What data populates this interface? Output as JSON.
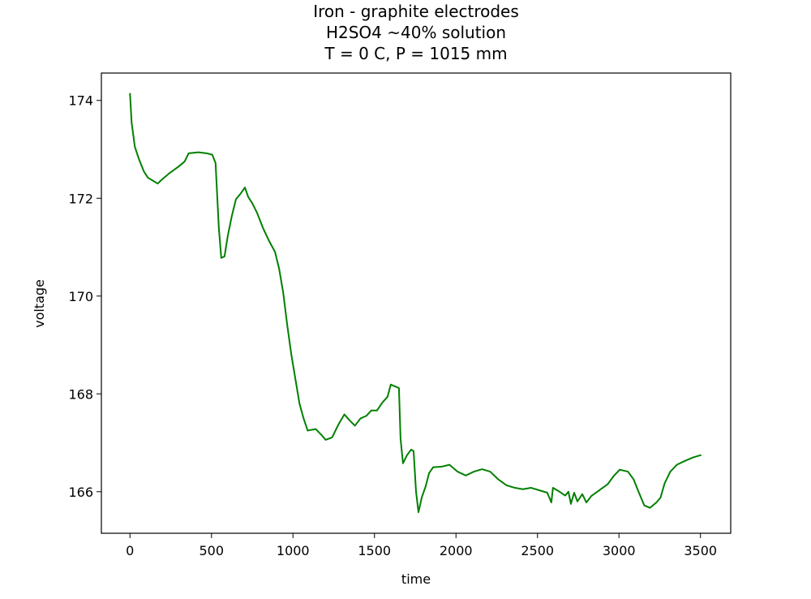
{
  "chart_data": {
    "type": "line",
    "title": [
      "Iron - graphite electrodes",
      "H2SO4 ~40% solution",
      "T = 0 C, P = 1015 mm"
    ],
    "x_label": "time",
    "y_label": "voltage",
    "x": [
      0,
      10,
      30,
      55,
      85,
      110,
      145,
      170,
      195,
      245,
      295,
      335,
      360,
      420,
      470,
      505,
      525,
      545,
      560,
      580,
      600,
      625,
      650,
      680,
      705,
      725,
      750,
      780,
      815,
      850,
      890,
      915,
      940,
      965,
      990,
      1015,
      1040,
      1065,
      1090,
      1140,
      1175,
      1200,
      1240,
      1280,
      1315,
      1350,
      1380,
      1415,
      1450,
      1480,
      1515,
      1550,
      1580,
      1600,
      1650,
      1660,
      1675,
      1700,
      1725,
      1740,
      1755,
      1770,
      1790,
      1815,
      1835,
      1860,
      1910,
      1960,
      2010,
      2060,
      2110,
      2160,
      2210,
      2260,
      2310,
      2360,
      2410,
      2460,
      2510,
      2560,
      2585,
      2595,
      2635,
      2670,
      2690,
      2705,
      2725,
      2745,
      2775,
      2800,
      2830,
      2880,
      2930,
      2970,
      3005,
      3055,
      3090,
      3120,
      3155,
      3190,
      3230,
      3255,
      3280,
      3315,
      3355,
      3405,
      3455,
      3505
    ],
    "series": [
      {
        "name": "voltage",
        "color": "#008000",
        "values": [
          174.15,
          173.55,
          173.05,
          172.8,
          172.55,
          172.42,
          172.35,
          172.3,
          172.38,
          172.52,
          172.64,
          172.75,
          172.92,
          172.94,
          172.92,
          172.89,
          172.72,
          171.4,
          170.78,
          170.81,
          171.23,
          171.64,
          171.98,
          172.1,
          172.22,
          172.03,
          171.9,
          171.7,
          171.4,
          171.15,
          170.9,
          170.56,
          170.07,
          169.4,
          168.8,
          168.3,
          167.8,
          167.5,
          167.25,
          167.28,
          167.16,
          167.06,
          167.11,
          167.38,
          167.58,
          167.45,
          167.35,
          167.5,
          167.55,
          167.66,
          167.66,
          167.83,
          167.94,
          168.19,
          168.12,
          167.08,
          166.58,
          166.75,
          166.86,
          166.83,
          166.0,
          165.58,
          165.88,
          166.12,
          166.38,
          166.5,
          166.51,
          166.55,
          166.41,
          166.33,
          166.41,
          166.46,
          166.41,
          166.25,
          166.13,
          166.08,
          166.05,
          166.08,
          166.03,
          165.98,
          165.78,
          166.08,
          166.0,
          165.92,
          166.0,
          165.75,
          165.98,
          165.8,
          165.95,
          165.78,
          165.91,
          166.03,
          166.15,
          166.33,
          166.45,
          166.41,
          166.25,
          166.0,
          165.72,
          165.67,
          165.78,
          165.88,
          166.17,
          166.41,
          166.55,
          166.63,
          166.7,
          166.75
        ]
      }
    ],
    "xlim": [
      -175.5,
      3685.5
    ],
    "ylim": [
      165.15,
      174.56
    ],
    "xticks": [
      0,
      500,
      1000,
      1500,
      2000,
      2500,
      3000,
      3500
    ],
    "yticks": [
      166,
      168,
      170,
      172,
      174
    ],
    "grid": false
  }
}
